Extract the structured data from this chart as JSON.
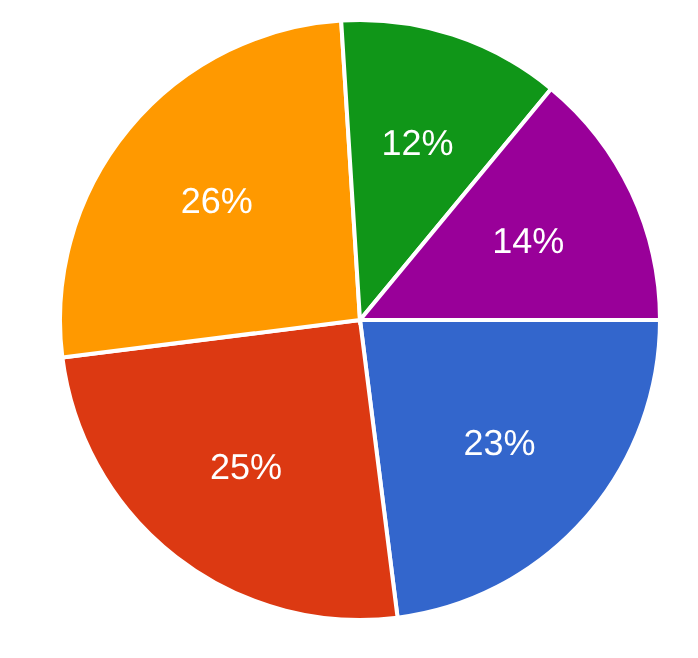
{
  "chart_data": {
    "type": "pie",
    "categories": [
      null,
      null,
      null,
      null,
      null
    ],
    "values": [
      23,
      25,
      26,
      12,
      14
    ],
    "colors": [
      "#3366cc",
      "#dc3912",
      "#ff9900",
      "#109618",
      "#990099"
    ],
    "value_labels": [
      "23%",
      "25%",
      "26%",
      "12%",
      "14%"
    ]
  }
}
